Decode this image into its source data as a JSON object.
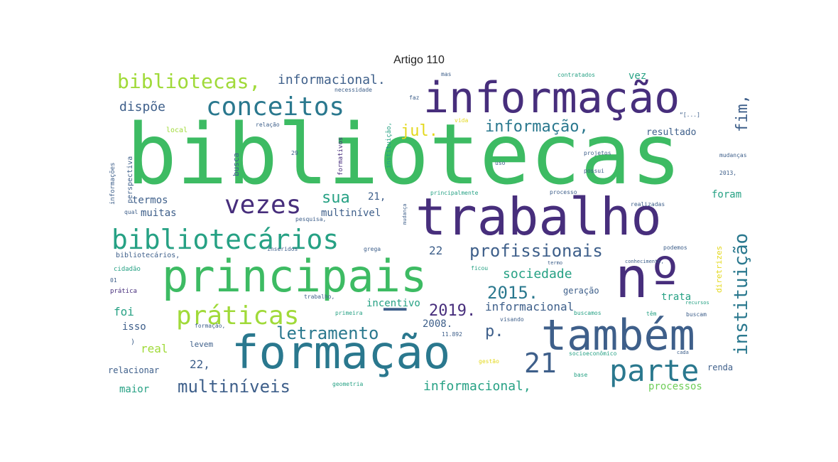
{
  "chart_data": {
    "type": "wordcloud",
    "title": "Artigo 110",
    "colors": {
      "green": "#3dbb63",
      "darkpurple": "#472e7c",
      "teal": "#2a788e",
      "slate": "#3e5f8a",
      "lime": "#a0da39",
      "yellow": "#e3d81c",
      "sea": "#26a184",
      "midgreen": "#6ece58"
    },
    "words": [
      {
        "text": "bibliotecas",
        "color": "green"
      },
      {
        "text": "informação",
        "color": "darkpurple"
      },
      {
        "text": "trabalho",
        "color": "darkpurple"
      },
      {
        "text": "principais",
        "color": "green"
      },
      {
        "text": "formação",
        "color": "teal"
      },
      {
        "text": "nº",
        "color": "darkpurple"
      },
      {
        "text": "também",
        "color": "slate"
      },
      {
        "text": "bibliotecários",
        "color": "sea"
      },
      {
        "text": "conceitos",
        "color": "teal"
      },
      {
        "text": "vezes",
        "color": "darkpurple"
      },
      {
        "text": "práticas",
        "color": "lime"
      },
      {
        "text": "parte",
        "color": "teal"
      },
      {
        "text": "21",
        "color": "slate"
      },
      {
        "text": "–",
        "color": "slate"
      },
      {
        "text": "bibliotecas,",
        "color": "lime"
      },
      {
        "text": "informação,",
        "color": "teal"
      },
      {
        "text": "instituição",
        "color": "teal"
      },
      {
        "text": "profissionais",
        "color": "slate"
      },
      {
        "text": "multiníveis",
        "color": "slate"
      },
      {
        "text": "letramento",
        "color": "teal"
      },
      {
        "text": "fim,",
        "color": "slate"
      },
      {
        "text": "2015.",
        "color": "teal"
      },
      {
        "text": "2019.",
        "color": "darkpurple"
      },
      {
        "text": "jul.",
        "color": "yellow"
      },
      {
        "text": "sua",
        "color": "sea"
      },
      {
        "text": "p.",
        "color": "slate"
      },
      {
        "text": "informacional,",
        "color": "sea"
      },
      {
        "text": "informacional",
        "color": "slate"
      },
      {
        "text": "informacional.",
        "color": "slate"
      },
      {
        "text": "dispõe",
        "color": "slate"
      },
      {
        "text": "sociedade",
        "color": "sea"
      },
      {
        "text": "22,",
        "color": "slate"
      },
      {
        "text": "22",
        "color": "slate"
      },
      {
        "text": "21,",
        "color": "slate"
      },
      {
        "text": "termos",
        "color": "slate"
      },
      {
        "text": "muitas",
        "color": "slate"
      },
      {
        "text": "multinível",
        "color": "slate"
      },
      {
        "text": "real",
        "color": "lime"
      },
      {
        "text": "foi",
        "color": "sea"
      },
      {
        "text": "isso",
        "color": "slate"
      },
      {
        "text": "maior",
        "color": "sea"
      },
      {
        "text": "relacionar",
        "color": "slate"
      },
      {
        "text": "processos",
        "color": "midgreen"
      },
      {
        "text": "vez",
        "color": "sea"
      },
      {
        "text": "resultado",
        "color": "slate"
      },
      {
        "text": "foram",
        "color": "sea"
      },
      {
        "text": "trata",
        "color": "sea"
      },
      {
        "text": "renda",
        "color": "slate"
      },
      {
        "text": "2008.",
        "color": "slate"
      },
      {
        "text": "incentivo",
        "color": "sea"
      },
      {
        "text": "geração",
        "color": "slate"
      },
      {
        "text": "diretrizes",
        "color": "yellow"
      },
      {
        "text": "levem",
        "color": "slate"
      },
      {
        "text": "busca",
        "color": "slate"
      },
      {
        "text": "perspectiva",
        "color": "slate"
      },
      {
        "text": "informações",
        "color": "slate"
      },
      {
        "text": "local",
        "color": "lime"
      },
      {
        "text": "relação",
        "color": "slate"
      },
      {
        "text": "necessidade",
        "color": "slate"
      },
      {
        "text": "mas",
        "color": "slate"
      },
      {
        "text": "faz",
        "color": "slate"
      },
      {
        "text": "contratados",
        "color": "sea"
      },
      {
        "text": "instituição,",
        "color": "sea"
      },
      {
        "text": "formativos",
        "color": "darkpurple"
      },
      {
        "text": "29",
        "color": "slate"
      },
      {
        "text": "vida",
        "color": "yellow"
      },
      {
        "text": "“[...]",
        "color": "slate"
      },
      {
        "text": "projetos",
        "color": "slate"
      },
      {
        "text": "mudanças",
        "color": "slate"
      },
      {
        "text": "uso",
        "color": "slate"
      },
      {
        "text": "possui",
        "color": "slate"
      },
      {
        "text": "2013,",
        "color": "slate"
      },
      {
        "text": "principalmente",
        "color": "sea"
      },
      {
        "text": "processo",
        "color": "slate"
      },
      {
        "text": "realizadas",
        "color": "slate"
      },
      {
        "text": "qual",
        "color": "slate"
      },
      {
        "text": "pesquisa,",
        "color": "slate"
      },
      {
        "text": "mudança",
        "color": "slate"
      },
      {
        "text": "grega",
        "color": "slate"
      },
      {
        "text": "inseridos",
        "color": "slate"
      },
      {
        "text": "bibliotecários,",
        "color": "slate"
      },
      {
        "text": "cidadão",
        "color": "sea"
      },
      {
        "text": "01",
        "color": "slate"
      },
      {
        "text": "prática",
        "color": "darkpurple"
      },
      {
        "text": "podemos",
        "color": "slate"
      },
      {
        "text": "termo",
        "color": "slate"
      },
      {
        "text": "conhecimento,",
        "color": "slate"
      },
      {
        "text": "ficou",
        "color": "sea"
      },
      {
        "text": "trabalho,",
        "color": "slate"
      },
      {
        "text": "recursos",
        "color": "sea"
      },
      {
        "text": "primeira",
        "color": "sea"
      },
      {
        "text": "buscamos",
        "color": "sea"
      },
      {
        "text": "têm",
        "color": "sea"
      },
      {
        "text": "buscam",
        "color": "slate"
      },
      {
        "text": "formação,",
        "color": "slate"
      },
      {
        "text": "visando",
        "color": "slate"
      },
      {
        "text": "11.892",
        "color": "slate"
      },
      {
        "text": ")",
        "color": "slate"
      },
      {
        "text": "socioeconômico",
        "color": "sea"
      },
      {
        "text": "cada",
        "color": "slate"
      },
      {
        "text": "gestão",
        "color": "yellow"
      },
      {
        "text": "base",
        "color": "sea"
      },
      {
        "text": "geometria",
        "color": "sea"
      }
    ]
  }
}
